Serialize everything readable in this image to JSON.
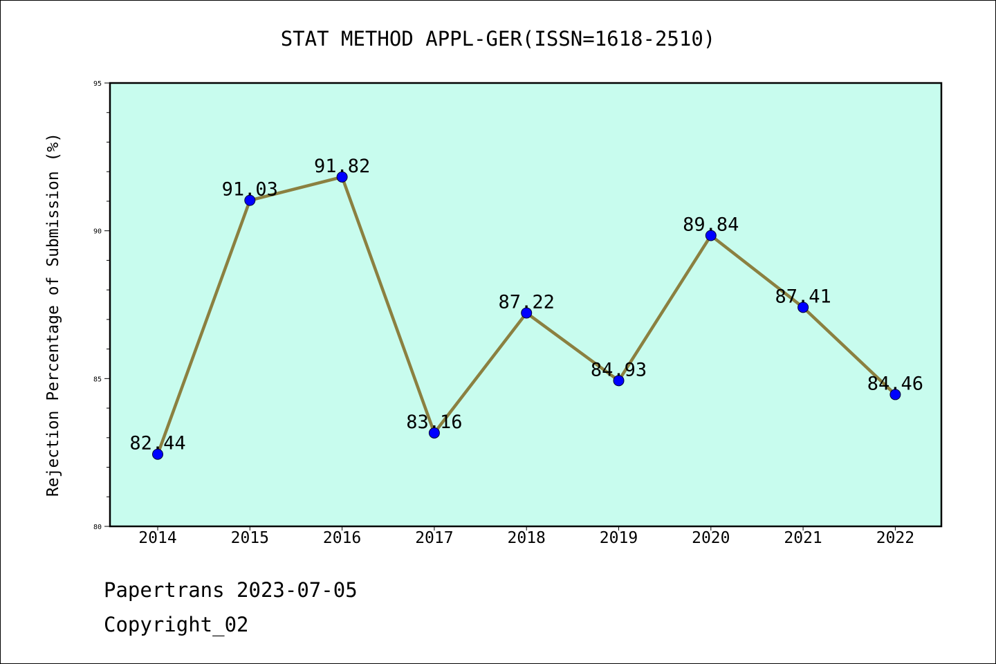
{
  "chart_data": {
    "type": "line",
    "title": "STAT METHOD APPL-GER(ISSN=1618-2510)",
    "ylabel": "Rejection Percentage of Submission (%)",
    "xlabel": "",
    "categories": [
      "2014",
      "2015",
      "2016",
      "2017",
      "2018",
      "2019",
      "2020",
      "2021",
      "2022"
    ],
    "values": [
      82.44,
      91.03,
      91.82,
      83.16,
      87.22,
      84.93,
      89.84,
      87.41,
      84.46
    ],
    "data_labels": [
      "82.44",
      "91.03",
      "91.82",
      "83.16",
      "87.22",
      "84.93",
      "89.84",
      "87.41",
      "84.46"
    ],
    "ylim": [
      80,
      95
    ],
    "yticks": [
      "80",
      "85",
      "90",
      "95"
    ],
    "grid": false,
    "colors": {
      "plot_background": "#c8fcee",
      "line": "#8b8040",
      "marker": "#0000ff"
    }
  },
  "footer": {
    "line1": "Papertrans 2023-07-05",
    "line2": "Copyright_02"
  }
}
